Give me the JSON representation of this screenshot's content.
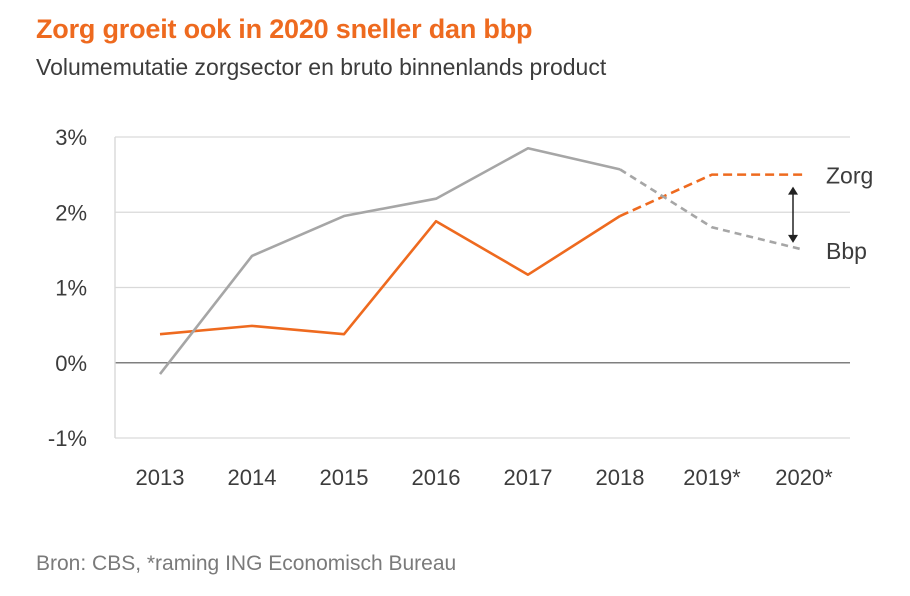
{
  "title": "Zorg groeit ook in 2020 sneller dan bbp",
  "subtitle": "Volumemutatie zorgsector en bruto binnenlands product",
  "source": "Bron: CBS, *raming ING Economisch Bureau",
  "colors": {
    "title": "#ee6a1f",
    "zorg": "#ee6a1f",
    "bbp": "#a6a6a6",
    "grid": "#d9d9d9"
  },
  "chart_data": {
    "type": "line",
    "title": "Zorg groeit ook in 2020 sneller dan bbp",
    "subtitle": "Volumemutatie zorgsector en bruto binnenlands product",
    "x": [
      "2013",
      "2014",
      "2015",
      "2016",
      "2017",
      "2018",
      "2019*",
      "2020*"
    ],
    "y_ticks": [
      "3%",
      "2%",
      "1%",
      "0%",
      "-1%"
    ],
    "ylim": [
      -1,
      3
    ],
    "grid": true,
    "estimated_from_index": 5,
    "series": [
      {
        "name": "Zorg",
        "values": [
          0.38,
          0.49,
          0.38,
          1.88,
          1.17,
          1.95,
          2.5,
          2.5
        ]
      },
      {
        "name": "Bbp",
        "values": [
          -0.15,
          1.42,
          1.95,
          2.18,
          2.85,
          2.57,
          1.8,
          1.5
        ]
      }
    ],
    "annotation": "double-headed arrow between Zorg and Bbp in 2020*"
  }
}
